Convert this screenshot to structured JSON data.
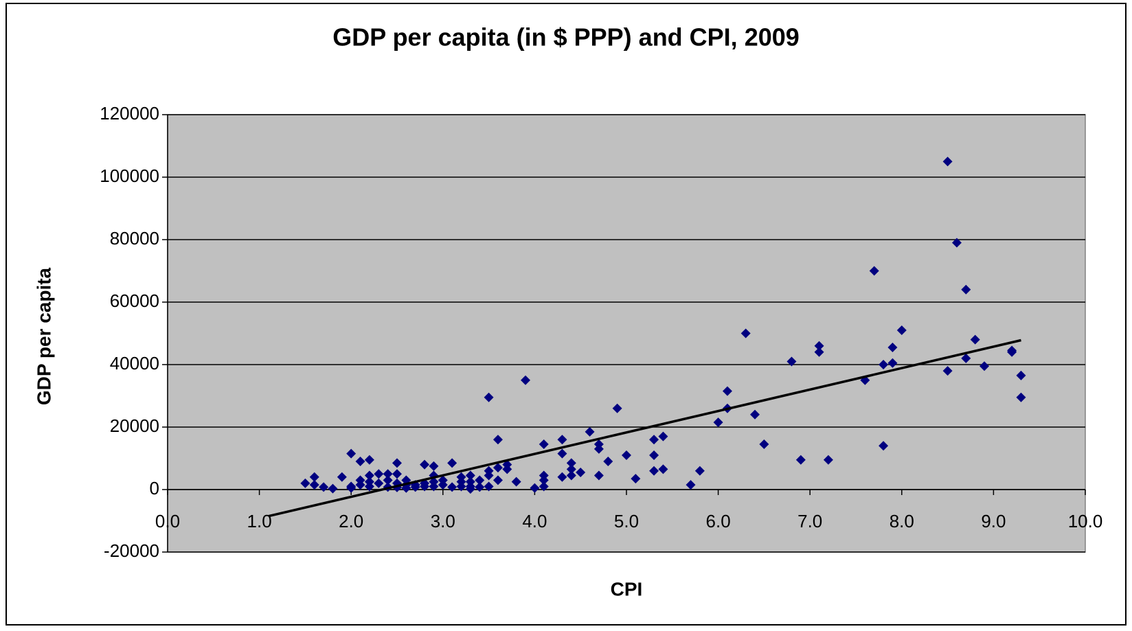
{
  "chart_data": {
    "type": "scatter",
    "title": "GDP per capita (in $ PPP) and CPI, 2009",
    "x_label": "CPI",
    "y_label": "GDP per capita",
    "xlim": [
      0,
      10
    ],
    "ylim": [
      -20000,
      120000
    ],
    "xticks": [
      {
        "value": 0,
        "label": "0.0"
      },
      {
        "value": 1,
        "label": "1.0"
      },
      {
        "value": 2,
        "label": "2.0"
      },
      {
        "value": 3,
        "label": "3.0"
      },
      {
        "value": 4,
        "label": "4.0"
      },
      {
        "value": 5,
        "label": "5.0"
      },
      {
        "value": 6,
        "label": "6.0"
      },
      {
        "value": 7,
        "label": "7.0"
      },
      {
        "value": 8,
        "label": "8.0"
      },
      {
        "value": 9,
        "label": "9.0"
      },
      {
        "value": 10,
        "label": "10.0"
      }
    ],
    "yticks": [
      -20000,
      0,
      20000,
      40000,
      60000,
      80000,
      100000,
      120000
    ],
    "grid": true,
    "series": [
      {
        "color": "#000080",
        "x": [
          1.5,
          1.6,
          1.6,
          1.7,
          1.8,
          1.9,
          2.0,
          2.0,
          2.0,
          2.1,
          2.1,
          2.1,
          2.2,
          2.2,
          2.2,
          2.2,
          2.3,
          2.3,
          2.4,
          2.4,
          2.4,
          2.5,
          2.5,
          2.5,
          2.5,
          2.6,
          2.6,
          2.6,
          2.7,
          2.7,
          2.8,
          2.8,
          2.8,
          2.9,
          2.9,
          2.9,
          2.9,
          3.0,
          3.0,
          3.1,
          3.1,
          3.2,
          3.2,
          3.2,
          3.3,
          3.3,
          3.3,
          3.3,
          3.4,
          3.4,
          3.5,
          3.5,
          3.5,
          3.5,
          3.6,
          3.6,
          3.6,
          3.7,
          3.7,
          3.8,
          3.9,
          4.0,
          4.1,
          4.1,
          4.1,
          4.1,
          4.3,
          4.3,
          4.3,
          4.4,
          4.4,
          4.4,
          4.5,
          4.6,
          4.7,
          4.7,
          4.7,
          4.8,
          4.9,
          5.0,
          5.1,
          5.3,
          5.3,
          5.3,
          5.4,
          5.4,
          5.7,
          5.8,
          6.0,
          6.1,
          6.1,
          6.3,
          6.4,
          6.5,
          6.8,
          6.9,
          7.1,
          7.1,
          7.2,
          7.6,
          7.7,
          7.8,
          7.8,
          7.9,
          7.9,
          8.0,
          8.5,
          8.5,
          8.6,
          8.7,
          8.7,
          8.8,
          8.9,
          9.2,
          9.2,
          9.3,
          9.3
        ],
        "values": [
          2000,
          4000,
          1500,
          800,
          300,
          4000,
          11500,
          1000,
          500,
          9000,
          3000,
          1500,
          9500,
          4500,
          2500,
          1000,
          5000,
          2000,
          5000,
          3000,
          800,
          8500,
          5000,
          2000,
          700,
          3000,
          1500,
          500,
          1500,
          800,
          8000,
          2000,
          1000,
          7500,
          4500,
          2500,
          1000,
          3000,
          1500,
          8500,
          800,
          4000,
          2500,
          1000,
          4500,
          2500,
          1000,
          200,
          3000,
          800,
          29500,
          6000,
          4500,
          1000,
          16000,
          7000,
          3000,
          8000,
          6500,
          2500,
          35000,
          500,
          14500,
          4500,
          3000,
          1000,
          16000,
          11500,
          4000,
          8500,
          6500,
          4500,
          5500,
          18500,
          14500,
          13000,
          4500,
          9000,
          26000,
          11000,
          3500,
          16000,
          11000,
          6000,
          17000,
          6500,
          1500,
          6000,
          21500,
          31500,
          26000,
          50000,
          24000,
          14500,
          41000,
          9500,
          46000,
          44000,
          9500,
          35000,
          70000,
          40000,
          14000,
          45500,
          40500,
          51000,
          105000,
          38000,
          79000,
          64000,
          42000,
          48000,
          39500,
          44500,
          44000,
          36500,
          29500
        ]
      }
    ],
    "trendline": {
      "color": "#000000",
      "x": [
        1.1,
        9.3
      ],
      "values": [
        -8500,
        47800
      ]
    }
  }
}
